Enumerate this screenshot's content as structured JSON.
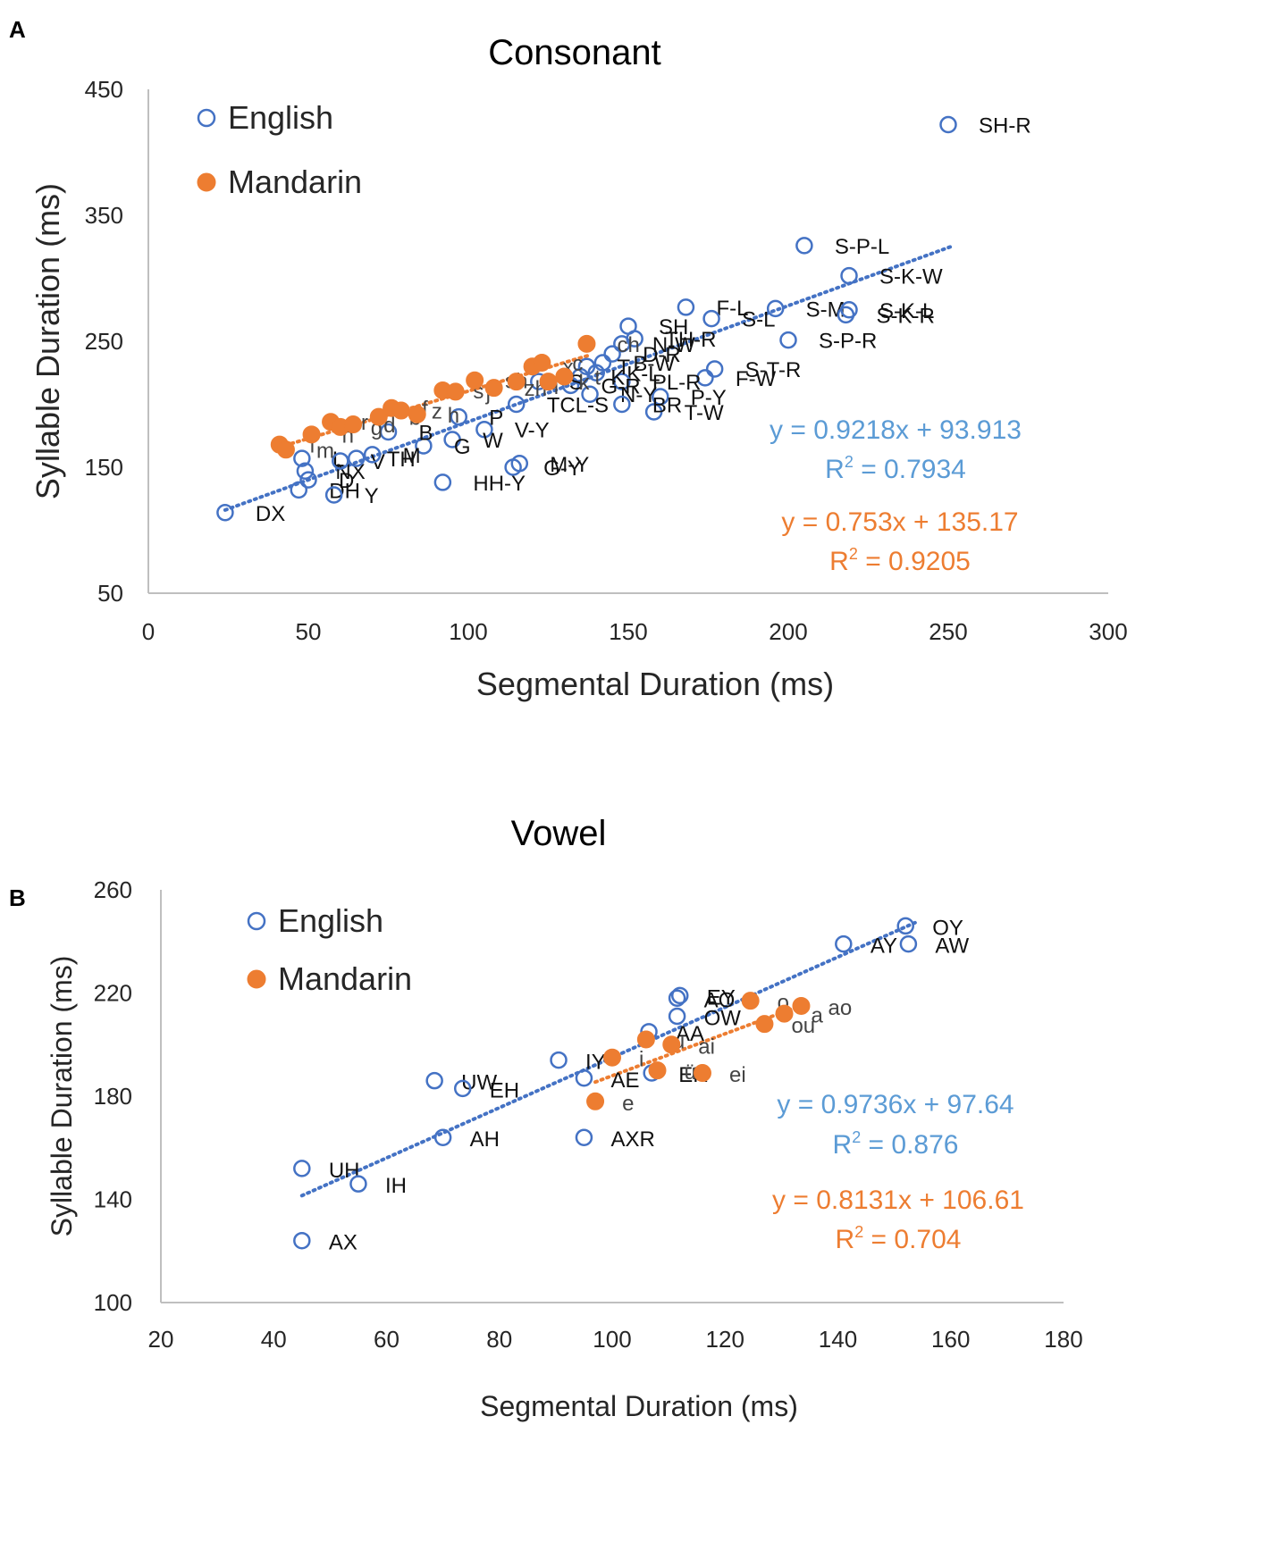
{
  "figure": {
    "panel_a_letter": "A",
    "panel_b_letter": "B"
  },
  "chart_data": [
    {
      "type": "scatter",
      "panel": "A",
      "title": "Consonant",
      "xlabel": "Segmental Duration (ms)",
      "ylabel": "Syllable Duration (ms)",
      "xlim": [
        0,
        300
      ],
      "ylim": [
        50,
        450
      ],
      "xticks": [
        0,
        50,
        100,
        150,
        200,
        250,
        300
      ],
      "yticks": [
        50,
        150,
        250,
        350,
        450
      ],
      "grid": false,
      "legend": {
        "position": "top-left",
        "entries": [
          "English",
          "Mandarin"
        ]
      },
      "colors": {
        "English": "#4472c4",
        "Mandarin": "#ed7d31",
        "eq_english": "#5b9bd5",
        "eq_mandarin": "#ed7d31"
      },
      "series": [
        {
          "name": "English",
          "marker": "open-circle",
          "points": [
            {
              "x": 24,
              "y": 114,
              "label": "DX"
            },
            {
              "x": 250,
              "y": 422,
              "label": "SH-R"
            },
            {
              "x": 205,
              "y": 326,
              "label": "S-P-L"
            },
            {
              "x": 219,
              "y": 302,
              "label": "S-K-W"
            },
            {
              "x": 196,
              "y": 276,
              "label": "S-M"
            },
            {
              "x": 219,
              "y": 275,
              "label": "S-K-L"
            },
            {
              "x": 218,
              "y": 271,
              "label": "S-K-R"
            },
            {
              "x": 200,
              "y": 251,
              "label": "S-P-R"
            },
            {
              "x": 168,
              "y": 277,
              "label": "F-L"
            },
            {
              "x": 176,
              "y": 268,
              "label": "S-L"
            },
            {
              "x": 177,
              "y": 228,
              "label": "S-T-R"
            },
            {
              "x": 174,
              "y": 221,
              "label": "F-W"
            },
            {
              "x": 160,
              "y": 206,
              "label": "P-Y"
            },
            {
              "x": 158,
              "y": 194,
              "label": "T-W"
            },
            {
              "x": 150,
              "y": 262,
              "label": "SH"
            },
            {
              "x": 152,
              "y": 252,
              "label": "TH-R"
            },
            {
              "x": 148,
              "y": 248,
              "label": "N-W"
            },
            {
              "x": 145,
              "y": 240,
              "label": "D-R"
            },
            {
              "x": 142,
              "y": 233,
              "label": "B-W"
            },
            {
              "x": 140,
              "y": 225,
              "label": "K-L"
            },
            {
              "x": 148,
              "y": 218,
              "label": "PL-R"
            },
            {
              "x": 137,
              "y": 230,
              "label": "T"
            },
            {
              "x": 135,
              "y": 222,
              "label": "K"
            },
            {
              "x": 132,
              "y": 215,
              "label": "G-R"
            },
            {
              "x": 138,
              "y": 208,
              "label": "N-Y"
            },
            {
              "x": 148,
              "y": 200,
              "label": "BR"
            },
            {
              "x": 122,
              "y": 218,
              "label": "S"
            },
            {
              "x": 115,
              "y": 200,
              "label": "TCL-S"
            },
            {
              "x": 105,
              "y": 180,
              "label": "V-Y"
            },
            {
              "x": 92,
              "y": 138,
              "label": "HH-Y"
            },
            {
              "x": 116,
              "y": 153,
              "label": "M-Y"
            },
            {
              "x": 114,
              "y": 150,
              "label": "G-Y"
            },
            {
              "x": 97,
              "y": 190,
              "label": "P"
            },
            {
              "x": 95,
              "y": 172,
              "label": "W"
            },
            {
              "x": 86,
              "y": 167,
              "label": "G"
            },
            {
              "x": 48,
              "y": 157,
              "label": "L"
            },
            {
              "x": 49,
              "y": 147,
              "label": "NX"
            },
            {
              "x": 50,
              "y": 140,
              "label": "D"
            },
            {
              "x": 47,
              "y": 132,
              "label": "DH"
            },
            {
              "x": 60,
              "y": 155,
              "label": "V"
            },
            {
              "x": 65,
              "y": 157,
              "label": "TH"
            },
            {
              "x": 70,
              "y": 160,
              "label": "M"
            },
            {
              "x": 58,
              "y": 128,
              "label": "Y"
            },
            {
              "x": 75,
              "y": 178,
              "label": "B"
            }
          ]
        },
        {
          "name": "Mandarin",
          "marker": "filled-circle",
          "points": [
            {
              "x": 41,
              "y": 168,
              "label": "l"
            },
            {
              "x": 43,
              "y": 164,
              "label": "m"
            },
            {
              "x": 51,
              "y": 176,
              "label": "n"
            },
            {
              "x": 57,
              "y": 186,
              "label": "r"
            },
            {
              "x": 60,
              "y": 182,
              "label": "g"
            },
            {
              "x": 64,
              "y": 184,
              "label": "d"
            },
            {
              "x": 72,
              "y": 190,
              "label": "b"
            },
            {
              "x": 76,
              "y": 197,
              "label": "f"
            },
            {
              "x": 79,
              "y": 195,
              "label": "z"
            },
            {
              "x": 84,
              "y": 192,
              "label": "h"
            },
            {
              "x": 92,
              "y": 211,
              "label": "s"
            },
            {
              "x": 96,
              "y": 210,
              "label": "j"
            },
            {
              "x": 102,
              "y": 219,
              "label": "sh"
            },
            {
              "x": 108,
              "y": 213,
              "label": "zh"
            },
            {
              "x": 115,
              "y": 218,
              "label": "q"
            },
            {
              "x": 120,
              "y": 230,
              "label": "x"
            },
            {
              "x": 123,
              "y": 233,
              "label": "c"
            },
            {
              "x": 125,
              "y": 218,
              "label": "k"
            },
            {
              "x": 130,
              "y": 222,
              "label": "t"
            },
            {
              "x": 137,
              "y": 248,
              "label": "ch"
            }
          ]
        }
      ],
      "trendlines": [
        {
          "series": "English",
          "equation": "y = 0.9218x + 93.913",
          "r2_label": "R",
          "r2_value": " = 0.7934",
          "slope": 0.9218,
          "intercept": 93.913,
          "x_range": [
            24,
            251
          ]
        },
        {
          "series": "Mandarin",
          "equation": "y = 0.753x + 135.17",
          "r2_label": "R",
          "r2_value": " = 0.9205",
          "slope": 0.753,
          "intercept": 135.17,
          "x_range": [
            41,
            138
          ]
        }
      ]
    },
    {
      "type": "scatter",
      "panel": "B",
      "title": "Vowel",
      "xlabel": "Segmental Duration (ms)",
      "ylabel": "Syllable Duration (ms)",
      "xlim": [
        20,
        180
      ],
      "ylim": [
        100,
        260
      ],
      "xticks": [
        20,
        40,
        60,
        80,
        100,
        120,
        140,
        160,
        180
      ],
      "yticks": [
        100,
        140,
        180,
        220,
        260
      ],
      "grid": false,
      "legend": {
        "position": "top-left",
        "entries": [
          "English",
          "Mandarin"
        ]
      },
      "colors": {
        "English": "#4472c4",
        "Mandarin": "#ed7d31",
        "eq_english": "#5b9bd5",
        "eq_mandarin": "#ed7d31"
      },
      "series": [
        {
          "name": "English",
          "marker": "open-circle",
          "points": [
            {
              "x": 45,
              "y": 124,
              "label": "AX"
            },
            {
              "x": 45,
              "y": 152,
              "label": "UH"
            },
            {
              "x": 55,
              "y": 146,
              "label": "IH"
            },
            {
              "x": 68.5,
              "y": 186,
              "label": "UW"
            },
            {
              "x": 73.5,
              "y": 183,
              "label": "EH"
            },
            {
              "x": 70,
              "y": 164,
              "label": "AH"
            },
            {
              "x": 90.5,
              "y": 194,
              "label": "IY"
            },
            {
              "x": 95,
              "y": 164,
              "label": "AXR"
            },
            {
              "x": 95,
              "y": 187,
              "label": "AE"
            },
            {
              "x": 106.5,
              "y": 205,
              "label": "AA"
            },
            {
              "x": 107,
              "y": 189,
              "label": "ER"
            },
            {
              "x": 111.5,
              "y": 211,
              "label": "OW"
            },
            {
              "x": 111.5,
              "y": 218,
              "label": "AO"
            },
            {
              "x": 112,
              "y": 219,
              "label": "EY"
            },
            {
              "x": 141,
              "y": 239,
              "label": "AY"
            },
            {
              "x": 152,
              "y": 246,
              "label": "OY"
            },
            {
              "x": 152.5,
              "y": 239,
              "label": "AW"
            }
          ]
        },
        {
          "name": "Mandarin",
          "marker": "filled-circle",
          "points": [
            {
              "x": 97,
              "y": 178,
              "label": "e"
            },
            {
              "x": 100,
              "y": 195,
              "label": "i"
            },
            {
              "x": 106,
              "y": 202,
              "label": "u"
            },
            {
              "x": 108,
              "y": 190,
              "label": "ü"
            },
            {
              "x": 110.5,
              "y": 200,
              "label": "ai"
            },
            {
              "x": 116,
              "y": 189,
              "label": "ei"
            },
            {
              "x": 124.5,
              "y": 217,
              "label": "o"
            },
            {
              "x": 127,
              "y": 208,
              "label": "ou"
            },
            {
              "x": 130.5,
              "y": 212,
              "label": "a"
            },
            {
              "x": 133.5,
              "y": 215,
              "label": "ao"
            }
          ]
        }
      ],
      "trendlines": [
        {
          "series": "English",
          "equation": "y = 0.9736x + 97.64",
          "r2_label": "R",
          "r2_value": " = 0.876",
          "slope": 0.9736,
          "intercept": 97.64,
          "x_range": [
            45,
            154
          ]
        },
        {
          "series": "Mandarin",
          "equation": "y = 0.8131x + 106.61",
          "r2_label": "R",
          "r2_value": " = 0.704",
          "slope": 0.8131,
          "intercept": 106.61,
          "x_range": [
            97,
            134
          ]
        }
      ]
    }
  ]
}
